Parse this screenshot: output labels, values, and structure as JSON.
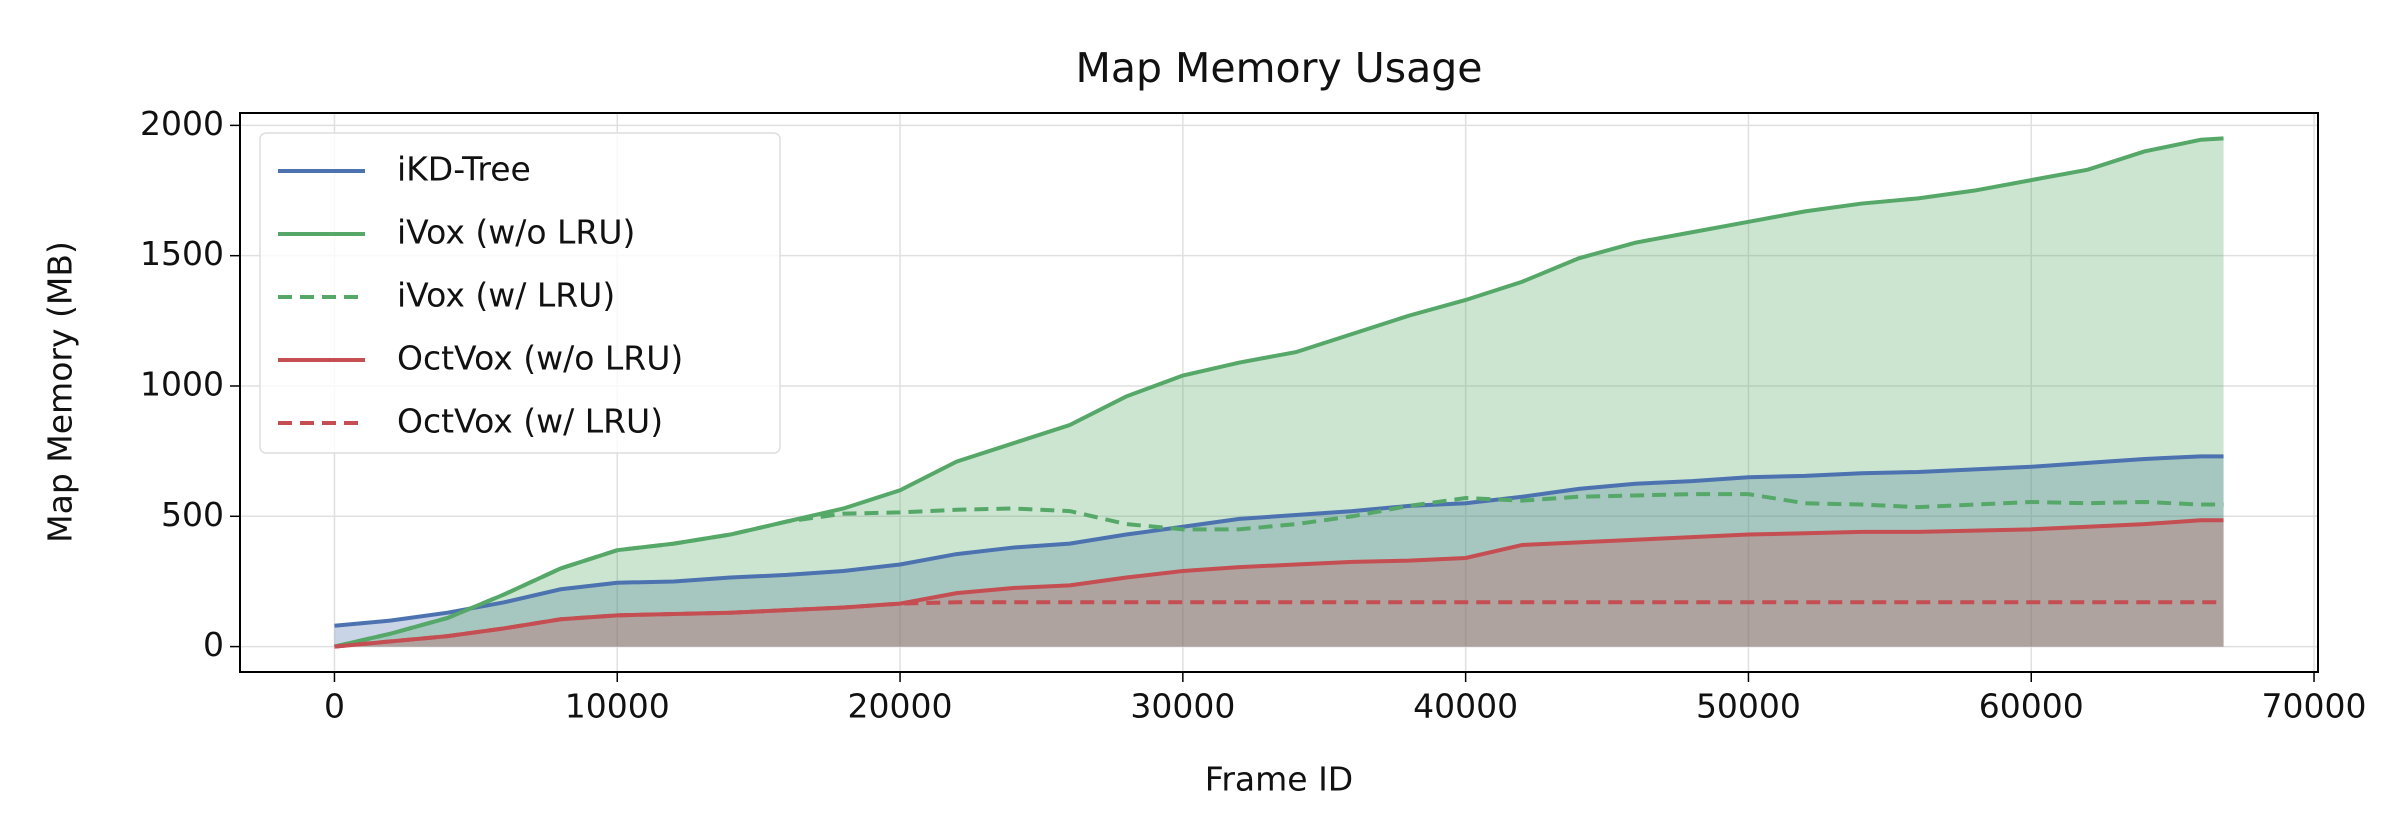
{
  "chart_data": {
    "type": "line",
    "title": "Map Memory Usage",
    "x_label": "Frame ID",
    "y_label": "Map Memory (MB)",
    "x": [
      0,
      2000,
      4000,
      6000,
      8000,
      10000,
      12000,
      14000,
      16000,
      18000,
      20000,
      22000,
      24000,
      26000,
      28000,
      30000,
      32000,
      34000,
      36000,
      38000,
      40000,
      42000,
      44000,
      46000,
      48000,
      50000,
      52000,
      54000,
      56000,
      58000,
      60000,
      62000,
      64000,
      66000,
      66800
    ],
    "series": [
      {
        "name": "iKD-Tree",
        "color": "#4c72b0",
        "dashed": false,
        "fill": true,
        "values": [
          80,
          100,
          130,
          170,
          220,
          245,
          250,
          265,
          275,
          290,
          315,
          355,
          380,
          395,
          430,
          460,
          490,
          505,
          520,
          540,
          550,
          575,
          605,
          625,
          635,
          650,
          655,
          665,
          670,
          680,
          690,
          705,
          720,
          730,
          730
        ]
      },
      {
        "name": "iVox (w/o LRU)",
        "color": "#55a868",
        "dashed": false,
        "fill": true,
        "values": [
          0,
          50,
          110,
          200,
          300,
          370,
          395,
          430,
          480,
          530,
          600,
          710,
          780,
          850,
          960,
          1040,
          1090,
          1130,
          1200,
          1270,
          1330,
          1400,
          1490,
          1550,
          1590,
          1630,
          1670,
          1700,
          1720,
          1750,
          1790,
          1830,
          1900,
          1945,
          1950
        ]
      },
      {
        "name": "iVox (w/ LRU)",
        "color": "#55a868",
        "dashed": true,
        "fill": false,
        "values": [
          0,
          50,
          110,
          200,
          300,
          370,
          395,
          430,
          480,
          510,
          515,
          525,
          530,
          520,
          470,
          450,
          450,
          470,
          500,
          540,
          570,
          560,
          575,
          580,
          585,
          585,
          550,
          545,
          535,
          545,
          555,
          550,
          555,
          545,
          545
        ]
      },
      {
        "name": "OctVox (w/o LRU)",
        "color": "#c44e52",
        "dashed": false,
        "fill": true,
        "values": [
          0,
          20,
          40,
          70,
          105,
          120,
          125,
          130,
          140,
          150,
          165,
          205,
          225,
          235,
          265,
          290,
          305,
          315,
          325,
          330,
          340,
          390,
          400,
          410,
          420,
          430,
          435,
          440,
          440,
          445,
          450,
          460,
          470,
          485,
          485
        ]
      },
      {
        "name": "OctVox (w/ LRU)",
        "color": "#c44e52",
        "dashed": true,
        "fill": false,
        "values": [
          0,
          20,
          40,
          70,
          105,
          120,
          125,
          130,
          140,
          150,
          165,
          170,
          170,
          170,
          170,
          170,
          170,
          170,
          170,
          170,
          170,
          170,
          170,
          170,
          170,
          170,
          170,
          170,
          170,
          170,
          170,
          170,
          170,
          170,
          170
        ]
      }
    ],
    "xlim": [
      -3340,
      70140
    ],
    "ylim": [
      -97.5,
      2047.5
    ],
    "xticks": [
      0,
      10000,
      20000,
      30000,
      40000,
      50000,
      60000,
      70000
    ],
    "yticks": [
      0,
      500,
      1000,
      1500,
      2000
    ],
    "grid": true,
    "legend": "upper left"
  }
}
